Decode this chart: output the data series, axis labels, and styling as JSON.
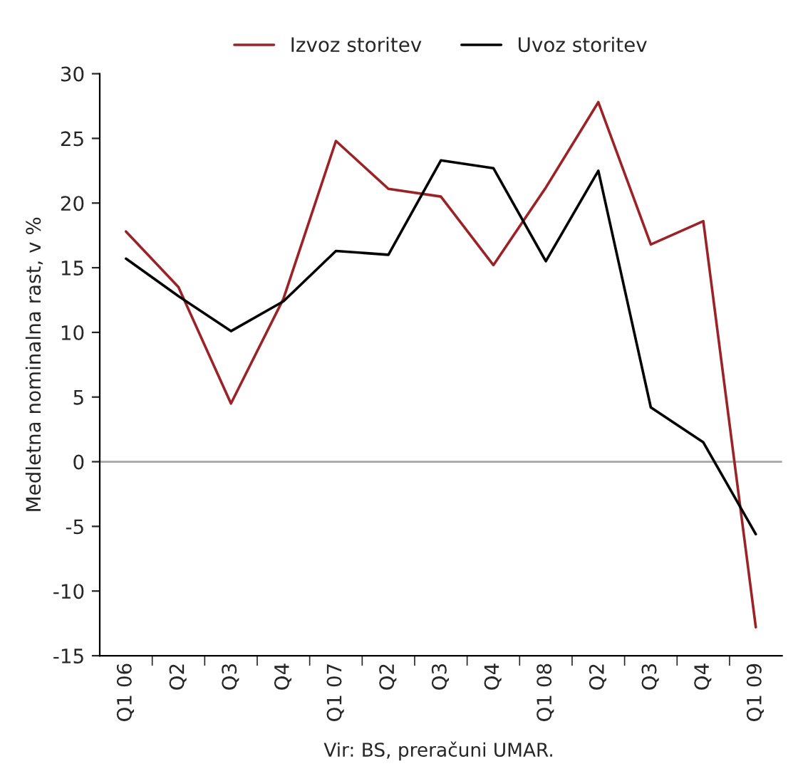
{
  "chart_data": {
    "type": "line",
    "categories": [
      "Q1 06",
      "Q2",
      "Q3",
      "Q4",
      "Q1 07",
      "Q2",
      "Q3",
      "Q4",
      "Q1 08",
      "Q2",
      "Q3",
      "Q4",
      "Q1 09"
    ],
    "series": [
      {
        "name": "Izvoz storitev",
        "color": "#9b2226",
        "values": [
          17.8,
          13.5,
          4.5,
          12.6,
          24.8,
          21.1,
          20.5,
          15.2,
          21.2,
          27.8,
          16.8,
          18.6,
          -12.8
        ]
      },
      {
        "name": "Uvoz storitev",
        "color": "#000000",
        "values": [
          15.7,
          12.8,
          10.1,
          12.4,
          16.3,
          16.0,
          23.3,
          22.7,
          15.5,
          22.5,
          4.2,
          1.5,
          -5.6
        ]
      }
    ],
    "ylabel": "Medletna nominalna rast, v %",
    "ylim": [
      -15,
      30
    ],
    "yticks": [
      -15,
      -10,
      -5,
      0,
      5,
      10,
      15,
      20,
      25,
      30
    ],
    "ref_lines": [
      {
        "axis": "y",
        "value": 0,
        "color": "#a6a6a6"
      }
    ],
    "annotations": [
      "Vir: BS, preračuni UMAR."
    ],
    "legend": "top",
    "grid": false,
    "marker": "none",
    "line_style": "solid"
  }
}
